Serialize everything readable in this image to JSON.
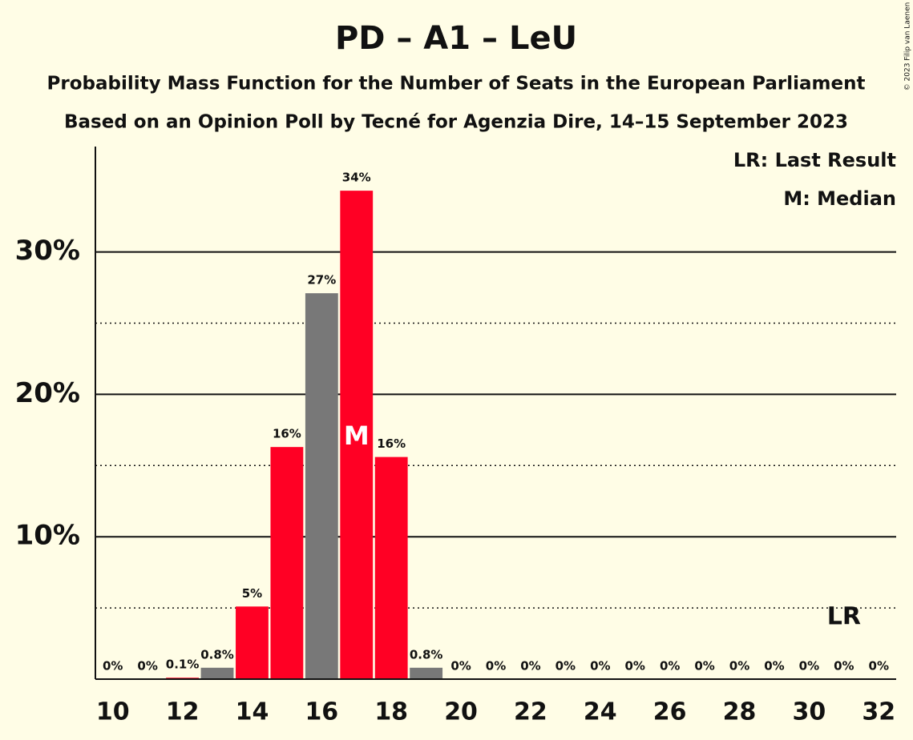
{
  "chart_data": {
    "type": "bar",
    "title": "PD – A1 – LeU",
    "subtitle": "Probability Mass Function for the Number of Seats in the European Parliament",
    "subtitle2": "Based on an Opinion Poll by Tecné for Agenzia Dire, 14–15 September 2023",
    "copyright": "© 2023 Filip van Laenen",
    "x": [
      10,
      11,
      12,
      13,
      14,
      15,
      16,
      17,
      18,
      19,
      20,
      21,
      22,
      23,
      24,
      25,
      26,
      27,
      28,
      29,
      30,
      31,
      32
    ],
    "values": [
      0,
      0,
      0.1,
      0.8,
      5.1,
      16.3,
      27.1,
      34.3,
      15.6,
      0.8,
      0,
      0,
      0,
      0,
      0,
      0,
      0,
      0,
      0,
      0,
      0,
      0,
      0
    ],
    "value_labels": [
      "0%",
      "0%",
      "0.1%",
      "0.8%",
      "5%",
      "16%",
      "27%",
      "34%",
      "16%",
      "0.8%",
      "0%",
      "0%",
      "0%",
      "0%",
      "0%",
      "0%",
      "0%",
      "0%",
      "0%",
      "0%",
      "0%",
      "0%",
      "0%"
    ],
    "colors": [
      "#ff0024",
      "#ff0024",
      "#ff0024",
      "#787878",
      "#ff0024",
      "#ff0024",
      "#787878",
      "#ff0024",
      "#ff0024",
      "#787878",
      "#ff0024",
      "#ff0024",
      "#ff0024",
      "#ff0024",
      "#ff0024",
      "#ff0024",
      "#ff0024",
      "#ff0024",
      "#ff0024",
      "#ff0024",
      "#ff0024",
      "#ff0024",
      "#ff0024"
    ],
    "xlim": [
      9.5,
      32.5
    ],
    "xticks": [
      10,
      12,
      14,
      16,
      18,
      20,
      22,
      24,
      26,
      28,
      30,
      32
    ],
    "ylim": [
      0,
      37.4
    ],
    "yticks": [
      {
        "value": 10,
        "label": "10%"
      },
      {
        "value": 20,
        "label": "20%"
      },
      {
        "value": 30,
        "label": "30%"
      }
    ],
    "minor_yticks": [
      5,
      15,
      25
    ],
    "grid": true,
    "median": 17,
    "median_label": "M",
    "last_result": 31,
    "last_result_label": "LR",
    "legend": [
      "LR: Last Result",
      "M: Median"
    ]
  }
}
